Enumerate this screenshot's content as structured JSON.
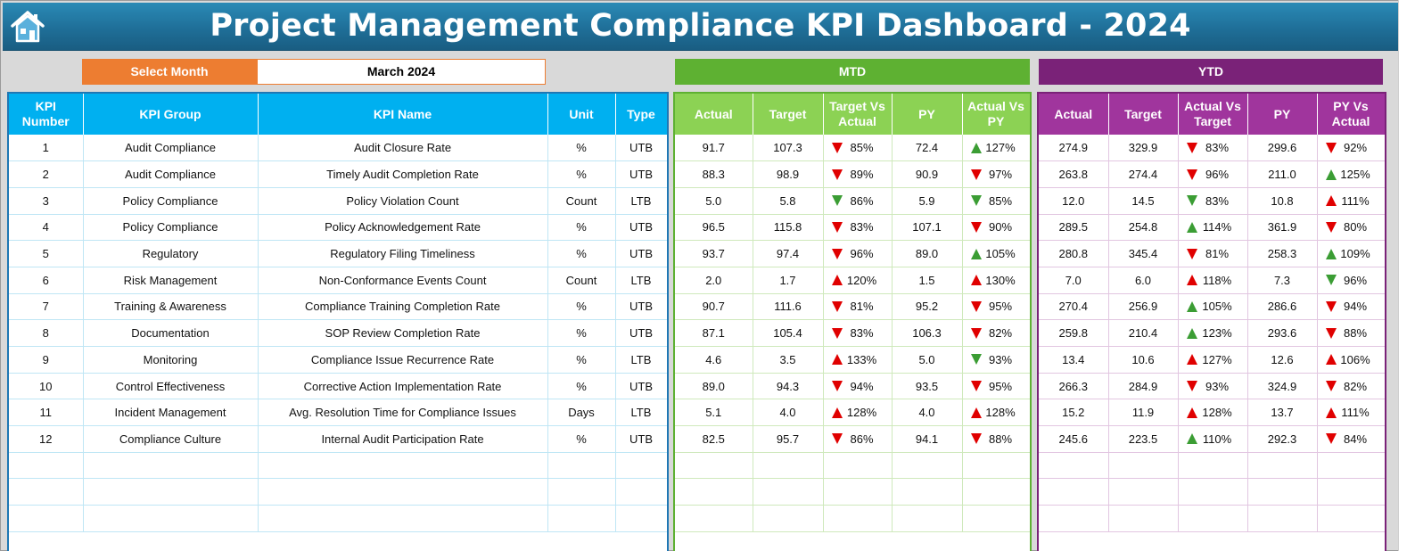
{
  "header": {
    "title": "Project Management Compliance KPI Dashboard - 2024",
    "home_icon": "home-icon"
  },
  "selector": {
    "label": "Select Month",
    "value": "March 2024"
  },
  "bands": {
    "mtd": "MTD",
    "ytd": "YTD"
  },
  "colors": {
    "header": "#1f6f98",
    "select": "#ed7d31",
    "mtd": "#5eb132",
    "ytd": "#7a2278",
    "kpi_header": "#00b0f0",
    "down": "#e00000",
    "up": "#3b9d34"
  },
  "kpi_headers": [
    "KPI\nNumber",
    "KPI Group",
    "KPI Name",
    "Unit",
    "Type"
  ],
  "mtd_headers": [
    "Actual",
    "Target",
    "Target Vs\nActual",
    "PY",
    "Actual Vs\nPY"
  ],
  "ytd_headers": [
    "Actual",
    "Target",
    "Actual Vs\nTarget",
    "PY",
    "PY Vs\nActual"
  ],
  "rows": [
    {
      "num": "1",
      "group": "Audit Compliance",
      "name": "Audit Closure Rate",
      "unit": "%",
      "type": "UTB",
      "mtd": {
        "actual": "91.7",
        "target": "107.3",
        "tva": "85%",
        "tva_icon": "down",
        "py": "72.4",
        "avp": "127%",
        "avp_icon": "up-green"
      },
      "ytd": {
        "actual": "274.9",
        "target": "329.9",
        "avt": "83%",
        "avt_icon": "down",
        "py": "299.6",
        "pva": "92%",
        "pva_icon": "down"
      }
    },
    {
      "num": "2",
      "group": "Audit Compliance",
      "name": "Timely Audit Completion Rate",
      "unit": "%",
      "type": "UTB",
      "mtd": {
        "actual": "88.3",
        "target": "98.9",
        "tva": "89%",
        "tva_icon": "down",
        "py": "90.9",
        "avp": "97%",
        "avp_icon": "down"
      },
      "ytd": {
        "actual": "263.8",
        "target": "274.4",
        "avt": "96%",
        "avt_icon": "down",
        "py": "211.0",
        "pva": "125%",
        "pva_icon": "up-green"
      }
    },
    {
      "num": "3",
      "group": "Policy Compliance",
      "name": "Policy Violation Count",
      "unit": "Count",
      "type": "LTB",
      "mtd": {
        "actual": "5.0",
        "target": "5.8",
        "tva": "86%",
        "tva_icon": "down-green",
        "py": "5.9",
        "avp": "85%",
        "avp_icon": "down-green"
      },
      "ytd": {
        "actual": "12.0",
        "target": "14.5",
        "avt": "83%",
        "avt_icon": "down-green",
        "py": "10.8",
        "pva": "111%",
        "pva_icon": "up-red"
      }
    },
    {
      "num": "4",
      "group": "Policy Compliance",
      "name": "Policy Acknowledgement Rate",
      "unit": "%",
      "type": "UTB",
      "mtd": {
        "actual": "96.5",
        "target": "115.8",
        "tva": "83%",
        "tva_icon": "down",
        "py": "107.1",
        "avp": "90%",
        "avp_icon": "down"
      },
      "ytd": {
        "actual": "289.5",
        "target": "254.8",
        "avt": "114%",
        "avt_icon": "up-green",
        "py": "361.9",
        "pva": "80%",
        "pva_icon": "down"
      }
    },
    {
      "num": "5",
      "group": "Regulatory",
      "name": "Regulatory Filing Timeliness",
      "unit": "%",
      "type": "UTB",
      "mtd": {
        "actual": "93.7",
        "target": "97.4",
        "tva": "96%",
        "tva_icon": "down",
        "py": "89.0",
        "avp": "105%",
        "avp_icon": "up-green"
      },
      "ytd": {
        "actual": "280.8",
        "target": "345.4",
        "avt": "81%",
        "avt_icon": "down",
        "py": "258.3",
        "pva": "109%",
        "pva_icon": "up-green"
      }
    },
    {
      "num": "6",
      "group": "Risk Management",
      "name": "Non-Conformance Events Count",
      "unit": "Count",
      "type": "LTB",
      "mtd": {
        "actual": "2.0",
        "target": "1.7",
        "tva": "120%",
        "tva_icon": "up-red",
        "py": "1.5",
        "avp": "130%",
        "avp_icon": "up-red"
      },
      "ytd": {
        "actual": "7.0",
        "target": "6.0",
        "avt": "118%",
        "avt_icon": "up-red",
        "py": "7.3",
        "pva": "96%",
        "pva_icon": "down-green"
      }
    },
    {
      "num": "7",
      "group": "Training & Awareness",
      "name": "Compliance Training Completion Rate",
      "unit": "%",
      "type": "UTB",
      "mtd": {
        "actual": "90.7",
        "target": "111.6",
        "tva": "81%",
        "tva_icon": "down",
        "py": "95.2",
        "avp": "95%",
        "avp_icon": "down"
      },
      "ytd": {
        "actual": "270.4",
        "target": "256.9",
        "avt": "105%",
        "avt_icon": "up-green",
        "py": "286.6",
        "pva": "94%",
        "pva_icon": "down"
      }
    },
    {
      "num": "8",
      "group": "Documentation",
      "name": "SOP Review Completion Rate",
      "unit": "%",
      "type": "UTB",
      "mtd": {
        "actual": "87.1",
        "target": "105.4",
        "tva": "83%",
        "tva_icon": "down",
        "py": "106.3",
        "avp": "82%",
        "avp_icon": "down"
      },
      "ytd": {
        "actual": "259.8",
        "target": "210.4",
        "avt": "123%",
        "avt_icon": "up-green",
        "py": "293.6",
        "pva": "88%",
        "pva_icon": "down"
      }
    },
    {
      "num": "9",
      "group": "Monitoring",
      "name": "Compliance Issue Recurrence Rate",
      "unit": "%",
      "type": "LTB",
      "mtd": {
        "actual": "4.6",
        "target": "3.5",
        "tva": "133%",
        "tva_icon": "up-red",
        "py": "5.0",
        "avp": "93%",
        "avp_icon": "down-green"
      },
      "ytd": {
        "actual": "13.4",
        "target": "10.6",
        "avt": "127%",
        "avt_icon": "up-red",
        "py": "12.6",
        "pva": "106%",
        "pva_icon": "up-red"
      }
    },
    {
      "num": "10",
      "group": "Control Effectiveness",
      "name": "Corrective Action Implementation Rate",
      "unit": "%",
      "type": "UTB",
      "mtd": {
        "actual": "89.0",
        "target": "94.3",
        "tva": "94%",
        "tva_icon": "down",
        "py": "93.5",
        "avp": "95%",
        "avp_icon": "down"
      },
      "ytd": {
        "actual": "266.3",
        "target": "284.9",
        "avt": "93%",
        "avt_icon": "down",
        "py": "324.9",
        "pva": "82%",
        "pva_icon": "down"
      }
    },
    {
      "num": "11",
      "group": "Incident Management",
      "name": "Avg. Resolution Time for Compliance Issues",
      "unit": "Days",
      "type": "LTB",
      "mtd": {
        "actual": "5.1",
        "target": "4.0",
        "tva": "128%",
        "tva_icon": "up-red",
        "py": "4.0",
        "avp": "128%",
        "avp_icon": "up-red"
      },
      "ytd": {
        "actual": "15.2",
        "target": "11.9",
        "avt": "128%",
        "avt_icon": "up-red",
        "py": "13.7",
        "pva": "111%",
        "pva_icon": "up-red"
      }
    },
    {
      "num": "12",
      "group": "Compliance Culture",
      "name": "Internal Audit Participation Rate",
      "unit": "%",
      "type": "UTB",
      "mtd": {
        "actual": "82.5",
        "target": "95.7",
        "tva": "86%",
        "tva_icon": "down",
        "py": "94.1",
        "avp": "88%",
        "avp_icon": "down"
      },
      "ytd": {
        "actual": "245.6",
        "target": "223.5",
        "avt": "110%",
        "avt_icon": "up-green",
        "py": "292.3",
        "pva": "84%",
        "pva_icon": "down"
      }
    }
  ]
}
